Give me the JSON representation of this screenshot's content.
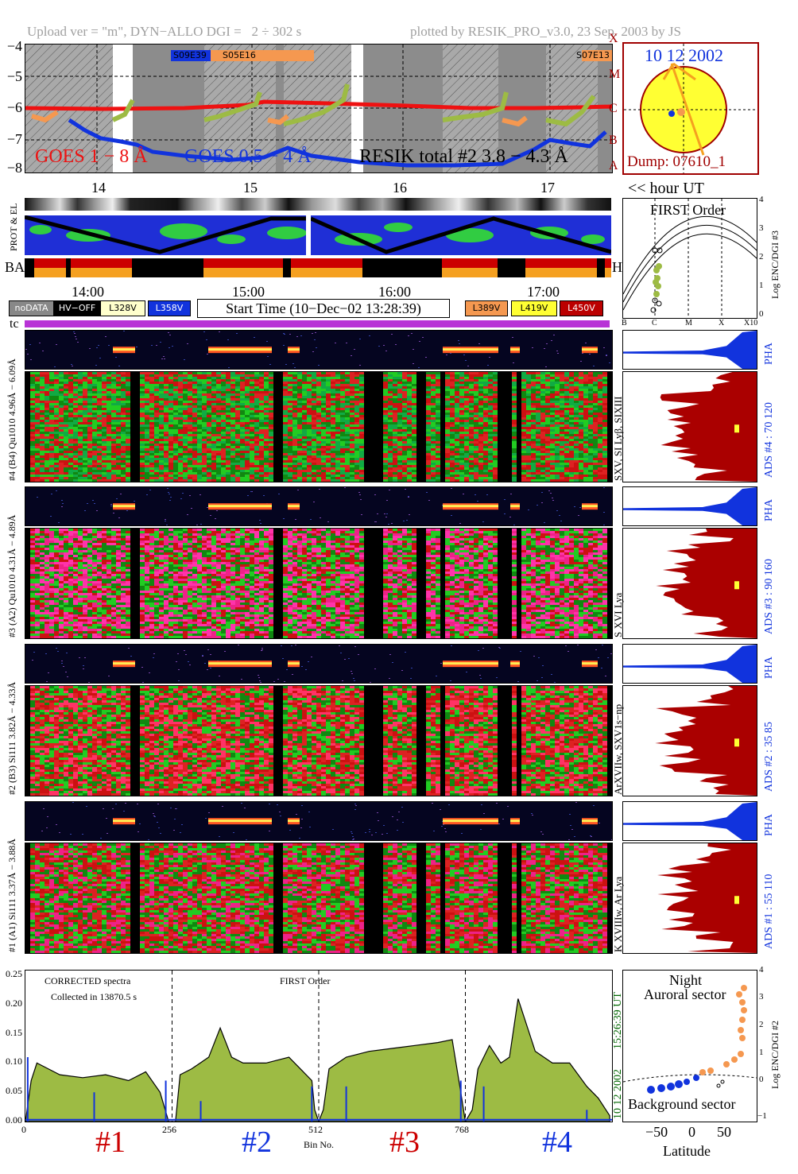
{
  "header": {
    "upload": "Upload ver = \"m\", DYN−ALLO DGI =   2 ÷ 302 s",
    "plotted": "plotted by RESIK_PRO_v3.0, 23 Sep. 2003 by JS"
  },
  "goes_panel": {
    "y_ticks": [
      "−4",
      "−5",
      "−6",
      "−7",
      "−8"
    ],
    "right_classes": [
      "X",
      "M",
      "C",
      "B",
      "A"
    ],
    "legend_goes1": "GOES 1 − 8 Å",
    "legend_goes05": "GOES 0.5 − 4 Å",
    "legend_resik": "RESIK total #2  3.8 − 4.3 Å",
    "event1": "S09E39",
    "event2": "S05E16",
    "event3": "S07E13",
    "x_ticks": [
      "14",
      "15",
      "16",
      "17"
    ],
    "colors": {
      "goes1": "#ee1111",
      "goes05": "#1133dd",
      "resik": "#9dbb44",
      "orange": "#f59850"
    }
  },
  "sun_panel": {
    "date": "10 12 2002",
    "dump": "Dump: 07610_1",
    "hour_label": "<< hour UT"
  },
  "strip_labels": {
    "prot": "PROT & EL",
    "ba": "BA",
    "hv": "HV",
    "tc": "tc"
  },
  "time_axis": [
    "14:00",
    "15:00",
    "16:00",
    "17:00"
  ],
  "legend": {
    "nodata": "noDATA",
    "hvoff": "HV−OFF",
    "l328": "L328V",
    "l358": "L358V",
    "start_time": "Start Time (10−Dec−02 13:28:39)",
    "l389": "L389V",
    "l419": "L419V",
    "l450": "L450V"
  },
  "first_order_panel": {
    "title": "FIRST Order",
    "ylabel": "Log ENC/DGI #3",
    "y_ticks": [
      "4",
      "3",
      "2",
      "1",
      "0"
    ],
    "x_ticks": [
      "B",
      "C",
      "M",
      "X",
      "X10"
    ]
  },
  "channels": [
    {
      "pha_label": "#4 (B4) Qu1010 4.96Å − 6.09Å",
      "right_label": "SXV, SI Lyβ, SIXIII",
      "ads": "ADS #4 :   70 120",
      "pha": "PHA"
    },
    {
      "pha_label": "#3 (A2) Qu1010 4.31Å − 4.89Å",
      "right_label": "S XVI Lya",
      "ads": "ADS #3 :   90 160",
      "pha": "PHA"
    },
    {
      "pha_label": "#2 (B3) Si111 3.82Å − 4.33Å",
      "right_label": "ArXVIIw, SXV1s−np",
      "ads": "ADS #2 :   35  85",
      "pha": "PHA"
    },
    {
      "pha_label": "#1 (A1) Si111 3.37Å − 3.88Å",
      "right_label": "K XVIIIw, Ar Lya",
      "ads": "ADS #1 :   55 110",
      "pha": "PHA"
    }
  ],
  "spectrum_panel": {
    "text1": "CORRECTED spectra",
    "text2": "Collected in 13870.5 s",
    "text3": "FIRST Order",
    "y_ticks": [
      "0.25",
      "0.20",
      "0.15",
      "0.10",
      "0.05",
      "0.00"
    ],
    "x_ticks": [
      "0",
      "256",
      "512",
      "768"
    ],
    "xlabel": "Bin No.",
    "channel_marks": [
      "#1",
      "#2",
      "#3",
      "#4"
    ],
    "date_vertical": "10 12 2002",
    "time_vertical": "15:26:39 UT"
  },
  "latitude_panel": {
    "title1": "Night",
    "title2": "Auroral sector",
    "bottom": "Background sector",
    "ylabel": "Log ENC/DGI #2",
    "y_ticks": [
      "4",
      "3",
      "2",
      "1",
      "0",
      "−1"
    ],
    "x_ticks": [
      "−50",
      "0",
      "50"
    ],
    "xlabel": "Latitude"
  },
  "chart_data": {
    "type": "line",
    "title": "",
    "xlabel": "Bin No.",
    "ylabel": "",
    "xlim": [
      0,
      1024
    ],
    "ylim": [
      0.0,
      0.25
    ],
    "series": [
      {
        "name": "CORRECTED spectra",
        "x": [
          0,
          10,
          20,
          40,
          60,
          100,
          140,
          180,
          210,
          235,
          250,
          256,
          262,
          270,
          290,
          320,
          340,
          360,
          380,
          420,
          460,
          500,
          505,
          512,
          520,
          530,
          560,
          600,
          640,
          680,
          720,
          745,
          760,
          768,
          780,
          790,
          810,
          830,
          845,
          860,
          890,
          920,
          950,
          980,
          1000,
          1020
        ],
        "y": [
          0.0,
          0.07,
          0.1,
          0.09,
          0.08,
          0.075,
          0.08,
          0.07,
          0.085,
          0.05,
          0.0,
          0.0,
          0.0,
          0.08,
          0.09,
          0.11,
          0.16,
          0.11,
          0.1,
          0.1,
          0.11,
          0.07,
          0.02,
          0.0,
          0.02,
          0.09,
          0.11,
          0.12,
          0.125,
          0.13,
          0.135,
          0.14,
          0.05,
          0.0,
          0.02,
          0.09,
          0.13,
          0.1,
          0.11,
          0.21,
          0.12,
          0.1,
          0.1,
          0.06,
          0.04,
          0.01
        ]
      }
    ]
  }
}
